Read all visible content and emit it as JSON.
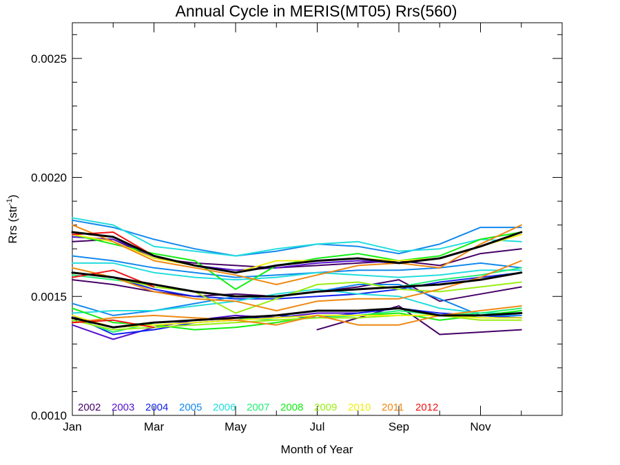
{
  "chart_data": {
    "type": "line",
    "title": "Annual Cycle in MERIS(MT05) Rrs(560)",
    "xlabel": "Month of Year",
    "ylabel": "Rrs (str",
    "ylabel_sup": "-1",
    "ylabel_close": ")",
    "xlim": [
      1,
      13
    ],
    "ylim": [
      0.001,
      0.00265
    ],
    "x_ticks": [
      {
        "x": 1,
        "label": "Jan"
      },
      {
        "x": 3,
        "label": "Mar"
      },
      {
        "x": 5,
        "label": "May"
      },
      {
        "x": 7,
        "label": "Jul"
      },
      {
        "x": 9,
        "label": "Sep"
      },
      {
        "x": 11,
        "label": "Nov"
      }
    ],
    "y_ticks": [
      {
        "y": 0.001,
        "label": "0.0010"
      },
      {
        "y": 0.0015,
        "label": "0.0015"
      },
      {
        "y": 0.002,
        "label": "0.0020"
      },
      {
        "y": 0.0025,
        "label": "0.0025"
      }
    ],
    "months": [
      1,
      2,
      3,
      4,
      5,
      6,
      7,
      8,
      9,
      10,
      11,
      12
    ],
    "legend": [
      {
        "label": "2002",
        "color": "#440066"
      },
      {
        "label": "2003",
        "color": "#5511cc"
      },
      {
        "label": "2004",
        "color": "#1122ee"
      },
      {
        "label": "2005",
        "color": "#1188ee"
      },
      {
        "label": "2006",
        "color": "#22dddd"
      },
      {
        "label": "2007",
        "color": "#22ee77"
      },
      {
        "label": "2008",
        "color": "#11ee11"
      },
      {
        "label": "2009",
        "color": "#99ee11"
      },
      {
        "label": "2010",
        "color": "#eeee11"
      },
      {
        "label": "2011",
        "color": "#ee8811"
      },
      {
        "label": "2012",
        "color": "#ee1111"
      }
    ],
    "series": [
      {
        "color": "#440066",
        "values": [
          0.00173,
          0.00174,
          0.00166,
          0.00164,
          0.00163,
          0.00162,
          0.00163,
          0.00164,
          0.00165,
          0.00163,
          0.00168,
          0.0017
        ]
      },
      {
        "color": "#440066",
        "values": [
          0.00157,
          0.00155,
          0.00152,
          0.0015,
          0.00151,
          0.0015,
          0.00152,
          0.00154,
          0.00157,
          0.00148,
          0.00151,
          0.00154
        ]
      },
      {
        "color": "#440066",
        "values": [
          null,
          null,
          null,
          null,
          null,
          null,
          0.00136,
          0.00141,
          0.00146,
          0.00134,
          0.00135,
          0.00136
        ]
      },
      {
        "color": "#5511cc",
        "values": [
          0.00138,
          0.00132,
          0.00137,
          0.0014,
          0.00142,
          0.00141,
          0.00143,
          0.00143,
          0.00145,
          0.00142,
          0.00142,
          0.00141
        ]
      },
      {
        "color": "#5511cc",
        "values": [
          0.00175,
          0.00174,
          0.00167,
          0.00163,
          0.00161,
          0.00162,
          0.00164,
          0.00165,
          0.00164,
          0.00166,
          0.00171,
          0.00177
        ]
      },
      {
        "color": "#1122ee",
        "values": [
          0.0016,
          0.00158,
          0.00153,
          0.0015,
          0.00149,
          0.00149,
          0.0015,
          0.00151,
          0.00153,
          0.00156,
          0.00158,
          0.0016
        ]
      },
      {
        "color": "#1122ee",
        "values": [
          0.00142,
          0.00134,
          0.00136,
          0.00139,
          0.0014,
          0.00142,
          0.00141,
          0.00143,
          0.00145,
          0.00143,
          0.00142,
          0.00141
        ]
      },
      {
        "color": "#1188ee",
        "values": [
          0.00182,
          0.00179,
          0.00174,
          0.0017,
          0.00167,
          0.00169,
          0.00172,
          0.00171,
          0.00168,
          0.00172,
          0.00179,
          0.00179
        ]
      },
      {
        "color": "#1188ee",
        "values": [
          0.00167,
          0.00165,
          0.00162,
          0.0016,
          0.00158,
          0.00159,
          0.0016,
          0.00161,
          0.00161,
          0.00162,
          0.00164,
          0.00162
        ]
      },
      {
        "color": "#1188ee",
        "values": [
          0.00147,
          0.00142,
          0.00144,
          0.00147,
          0.0015,
          0.0015,
          0.00152,
          0.00155,
          0.00155,
          0.00149,
          0.00142,
          0.00142
        ]
      },
      {
        "color": "#22dddd",
        "values": [
          0.00183,
          0.0018,
          0.00171,
          0.00169,
          0.00167,
          0.0017,
          0.00172,
          0.00173,
          0.00169,
          0.0017,
          0.00174,
          0.00173
        ]
      },
      {
        "color": "#22dddd",
        "values": [
          0.00164,
          0.00164,
          0.0016,
          0.00158,
          0.00157,
          0.00158,
          0.0016,
          0.00159,
          0.00158,
          0.00159,
          0.00161,
          0.00161
        ]
      },
      {
        "color": "#22dddd",
        "values": [
          0.00143,
          0.00144,
          0.00144,
          0.00146,
          0.00148,
          0.00151,
          0.00153,
          0.00151,
          0.0015,
          0.00145,
          0.00143,
          0.00143
        ]
      },
      {
        "color": "#22ee77",
        "values": [
          0.00159,
          0.00157,
          0.00155,
          0.00152,
          0.0015,
          0.0015,
          0.00152,
          0.00153,
          0.00154,
          0.00157,
          0.00159,
          0.00162
        ]
      },
      {
        "color": "#22ee77",
        "values": [
          0.00141,
          0.00135,
          0.00139,
          0.0014,
          0.00141,
          0.0014,
          0.00141,
          0.00142,
          0.00144,
          0.00142,
          0.00143,
          0.00145
        ]
      },
      {
        "color": "#11ee11",
        "values": [
          0.00176,
          0.00172,
          0.00168,
          0.00165,
          0.00153,
          0.00163,
          0.00166,
          0.00168,
          0.00165,
          0.00167,
          0.00174,
          0.00177
        ]
      },
      {
        "color": "#11ee11",
        "values": [
          0.00145,
          0.00139,
          0.00138,
          0.00136,
          0.00137,
          0.00139,
          0.00142,
          0.00142,
          0.00143,
          0.0014,
          0.00142,
          0.00144
        ]
      },
      {
        "color": "#99ee11",
        "values": [
          0.00162,
          0.00158,
          0.00154,
          0.00152,
          0.00143,
          0.00149,
          0.00155,
          0.00156,
          0.00153,
          0.00152,
          0.00154,
          0.00156
        ]
      },
      {
        "color": "#99ee11",
        "values": [
          0.0014,
          0.00136,
          0.00137,
          0.00138,
          0.00139,
          0.0014,
          0.00141,
          0.00141,
          0.00142,
          0.00142,
          0.0014,
          0.0014
        ]
      },
      {
        "color": "#eeee11",
        "values": [
          0.00176,
          0.00173,
          0.00166,
          0.00163,
          0.0016,
          0.00165,
          0.00165,
          0.00166,
          0.00165,
          0.00166,
          0.00171,
          0.00176
        ]
      },
      {
        "color": "#eeee11",
        "values": [
          0.00142,
          0.00137,
          0.00138,
          0.00139,
          0.0014,
          0.00141,
          0.00142,
          0.00142,
          0.00142,
          0.00142,
          0.00141,
          0.00141
        ]
      },
      {
        "color": "#ee8811",
        "values": [
          0.0018,
          0.00173,
          0.00165,
          0.00162,
          0.00159,
          0.00155,
          0.00159,
          0.00163,
          0.00164,
          0.00162,
          0.00172,
          0.0018
        ]
      },
      {
        "color": "#ee8811",
        "values": [
          0.00162,
          0.00158,
          0.00152,
          0.00149,
          0.00148,
          0.00144,
          0.00148,
          0.00149,
          0.00149,
          0.00153,
          0.00158,
          0.00165
        ]
      },
      {
        "color": "#ee8811",
        "values": [
          0.00139,
          0.00141,
          0.00142,
          0.00141,
          0.0014,
          0.00138,
          0.00142,
          0.00138,
          0.00138,
          0.00142,
          0.00144,
          0.00146
        ]
      },
      {
        "color": "#ee1111",
        "values": [
          0.00176,
          0.00177,
          0.00167,
          null,
          null,
          null,
          null,
          null,
          null,
          null,
          null,
          null
        ]
      },
      {
        "color": "#ee1111",
        "values": [
          0.00158,
          0.00161,
          0.00154,
          null,
          null,
          null,
          null,
          null,
          null,
          null,
          null,
          null
        ]
      },
      {
        "color": "#ee1111",
        "values": [
          0.00139,
          0.0014,
          0.00137,
          null,
          null,
          null,
          null,
          null,
          null,
          null,
          null,
          null
        ]
      },
      {
        "color": "#000000",
        "width": 3,
        "values": [
          0.00177,
          0.00175,
          0.00167,
          0.00163,
          0.0016,
          0.00163,
          0.00165,
          0.00166,
          0.00164,
          0.00166,
          0.00171,
          0.00177
        ]
      },
      {
        "color": "#000000",
        "width": 3,
        "values": [
          0.0016,
          0.00158,
          0.00155,
          0.00152,
          0.0015,
          0.0015,
          0.00152,
          0.00153,
          0.00154,
          0.00155,
          0.00157,
          0.0016
        ]
      },
      {
        "color": "#000000",
        "width": 3,
        "values": [
          0.00141,
          0.00137,
          0.00139,
          0.0014,
          0.00141,
          0.00142,
          0.00144,
          0.00144,
          0.00145,
          0.00142,
          0.00142,
          0.00143
        ]
      }
    ]
  }
}
